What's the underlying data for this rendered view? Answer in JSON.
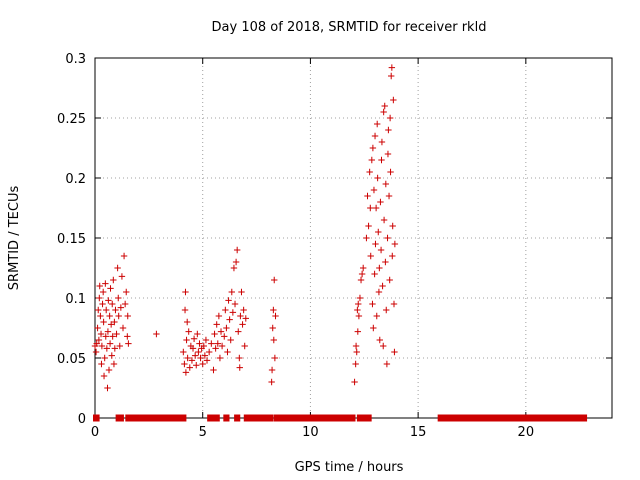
{
  "chart_data": {
    "type": "scatter",
    "title": "Day 108 of 2018, SRMTID for receiver rkld",
    "xlabel": "GPS time / hours",
    "ylabel": "SRMTID / TECUs",
    "xlim": [
      0,
      24
    ],
    "ylim": [
      0,
      0.3
    ],
    "xticks": [
      0,
      5,
      10,
      15,
      20
    ],
    "xtick_labels": [
      "0",
      "5",
      "10",
      "15",
      "20"
    ],
    "yticks": [
      0,
      0.05,
      0.1,
      0.15,
      0.2,
      0.25,
      0.3
    ],
    "ytick_labels": [
      "0",
      "0.05",
      "0.1",
      "0.15",
      "0.2",
      "0.25",
      "0.3"
    ],
    "grid": true,
    "marker": "+",
    "color": "#cc0000",
    "series": [
      {
        "points": [
          [
            0.0,
            0.06
          ],
          [
            0.05,
            0.055
          ],
          [
            0.08,
            0.062
          ],
          [
            0.12,
            0.075
          ],
          [
            0.15,
            0.09
          ],
          [
            0.18,
            0.065
          ],
          [
            0.2,
            0.1
          ],
          [
            0.22,
            0.11
          ],
          [
            0.25,
            0.085
          ],
          [
            0.28,
            0.07
          ],
          [
            0.3,
            0.045
          ],
          [
            0.32,
            0.06
          ],
          [
            0.35,
            0.095
          ],
          [
            0.38,
            0.105
          ],
          [
            0.4,
            0.08
          ],
          [
            0.42,
            0.035
          ],
          [
            0.45,
            0.05
          ],
          [
            0.48,
            0.112
          ],
          [
            0.5,
            0.068
          ],
          [
            0.52,
            0.09
          ],
          [
            0.55,
            0.058
          ],
          [
            0.58,
            0.025
          ],
          [
            0.6,
            0.072
          ],
          [
            0.62,
            0.098
          ],
          [
            0.65,
            0.04
          ],
          [
            0.68,
            0.085
          ],
          [
            0.7,
            0.062
          ],
          [
            0.72,
            0.108
          ],
          [
            0.75,
            0.078
          ],
          [
            0.78,
            0.052
          ],
          [
            0.8,
            0.095
          ],
          [
            0.82,
            0.068
          ],
          [
            0.85,
            0.115
          ],
          [
            0.88,
            0.045
          ],
          [
            0.9,
            0.08
          ],
          [
            0.92,
            0.058
          ],
          [
            0.95,
            0.09
          ],
          [
            1.0,
            0.07
          ],
          [
            1.05,
            0.125
          ],
          [
            1.08,
            0.1
          ],
          [
            1.1,
            0.085
          ],
          [
            1.15,
            0.06
          ],
          [
            1.2,
            0.092
          ],
          [
            1.25,
            0.118
          ],
          [
            1.3,
            0.075
          ],
          [
            1.35,
            0.135
          ],
          [
            1.4,
            0.095
          ],
          [
            1.45,
            0.105
          ],
          [
            1.5,
            0.068
          ],
          [
            1.52,
            0.085
          ],
          [
            1.55,
            0.062
          ],
          [
            2.85,
            0.07
          ],
          [
            4.1,
            0.055
          ],
          [
            4.15,
            0.045
          ],
          [
            4.18,
            0.09
          ],
          [
            4.2,
            0.105
          ],
          [
            4.22,
            0.038
          ],
          [
            4.25,
            0.065
          ],
          [
            4.28,
            0.08
          ],
          [
            4.3,
            0.05
          ],
          [
            4.35,
            0.072
          ],
          [
            4.4,
            0.042
          ],
          [
            4.45,
            0.06
          ],
          [
            4.5,
            0.048
          ],
          [
            4.55,
            0.058
          ],
          [
            4.6,
            0.066
          ],
          [
            4.65,
            0.052
          ],
          [
            4.7,
            0.044
          ],
          [
            4.75,
            0.07
          ],
          [
            4.8,
            0.055
          ],
          [
            4.85,
            0.062
          ],
          [
            4.9,
            0.05
          ],
          [
            4.95,
            0.058
          ],
          [
            5.0,
            0.045
          ],
          [
            5.05,
            0.06
          ],
          [
            5.1,
            0.052
          ],
          [
            5.15,
            0.065
          ],
          [
            5.2,
            0.048
          ],
          [
            5.3,
            0.055
          ],
          [
            5.4,
            0.062
          ],
          [
            5.5,
            0.04
          ],
          [
            5.55,
            0.07
          ],
          [
            5.6,
            0.058
          ],
          [
            5.65,
            0.078
          ],
          [
            5.7,
            0.062
          ],
          [
            5.75,
            0.085
          ],
          [
            5.8,
            0.05
          ],
          [
            5.85,
            0.072
          ],
          [
            5.9,
            0.06
          ],
          [
            6.0,
            0.068
          ],
          [
            6.05,
            0.09
          ],
          [
            6.1,
            0.075
          ],
          [
            6.15,
            0.055
          ],
          [
            6.2,
            0.098
          ],
          [
            6.25,
            0.082
          ],
          [
            6.3,
            0.065
          ],
          [
            6.35,
            0.105
          ],
          [
            6.4,
            0.088
          ],
          [
            6.45,
            0.125
          ],
          [
            6.5,
            0.095
          ],
          [
            6.55,
            0.13
          ],
          [
            6.6,
            0.14
          ],
          [
            6.65,
            0.072
          ],
          [
            6.7,
            0.05
          ],
          [
            6.72,
            0.042
          ],
          [
            6.75,
            0.085
          ],
          [
            6.8,
            0.105
          ],
          [
            6.85,
            0.078
          ],
          [
            6.9,
            0.09
          ],
          [
            6.95,
            0.06
          ],
          [
            7.0,
            0.083
          ],
          [
            8.2,
            0.03
          ],
          [
            8.22,
            0.04
          ],
          [
            8.25,
            0.075
          ],
          [
            8.28,
            0.09
          ],
          [
            8.3,
            0.065
          ],
          [
            8.32,
            0.115
          ],
          [
            8.35,
            0.05
          ],
          [
            8.38,
            0.085
          ],
          [
            12.05,
            0.03
          ],
          [
            12.1,
            0.045
          ],
          [
            12.12,
            0.06
          ],
          [
            12.15,
            0.055
          ],
          [
            12.18,
            0.09
          ],
          [
            12.2,
            0.072
          ],
          [
            12.22,
            0.095
          ],
          [
            12.25,
            0.085
          ],
          [
            12.3,
            0.1
          ],
          [
            12.35,
            0.115
          ],
          [
            12.4,
            0.12
          ],
          [
            12.45,
            0.125
          ],
          [
            12.6,
            0.15
          ],
          [
            12.65,
            0.185
          ],
          [
            12.7,
            0.16
          ],
          [
            12.75,
            0.205
          ],
          [
            12.78,
            0.175
          ],
          [
            12.8,
            0.135
          ],
          [
            12.85,
            0.215
          ],
          [
            12.88,
            0.095
          ],
          [
            12.9,
            0.225
          ],
          [
            12.92,
            0.075
          ],
          [
            12.95,
            0.19
          ],
          [
            12.98,
            0.12
          ],
          [
            13.0,
            0.235
          ],
          [
            13.02,
            0.145
          ],
          [
            13.05,
            0.175
          ],
          [
            13.08,
            0.085
          ],
          [
            13.1,
            0.245
          ],
          [
            13.12,
            0.2
          ],
          [
            13.15,
            0.155
          ],
          [
            13.18,
            0.105
          ],
          [
            13.2,
            0.125
          ],
          [
            13.22,
            0.065
          ],
          [
            13.25,
            0.18
          ],
          [
            13.28,
            0.14
          ],
          [
            13.3,
            0.215
          ],
          [
            13.32,
            0.23
          ],
          [
            13.35,
            0.11
          ],
          [
            13.38,
            0.06
          ],
          [
            13.4,
            0.255
          ],
          [
            13.42,
            0.165
          ],
          [
            13.45,
            0.26
          ],
          [
            13.48,
            0.13
          ],
          [
            13.5,
            0.195
          ],
          [
            13.52,
            0.09
          ],
          [
            13.55,
            0.045
          ],
          [
            13.58,
            0.15
          ],
          [
            13.6,
            0.22
          ],
          [
            13.62,
            0.24
          ],
          [
            13.65,
            0.185
          ],
          [
            13.68,
            0.115
          ],
          [
            13.7,
            0.25
          ],
          [
            13.72,
            0.205
          ],
          [
            13.75,
            0.285
          ],
          [
            13.78,
            0.292
          ],
          [
            13.8,
            0.135
          ],
          [
            13.82,
            0.16
          ],
          [
            13.85,
            0.265
          ],
          [
            13.88,
            0.095
          ],
          [
            13.9,
            0.055
          ],
          [
            13.92,
            0.145
          ]
        ]
      }
    ],
    "zero_intervals": [
      [
        0.0,
        0.12
      ],
      [
        1.05,
        1.25
      ],
      [
        1.5,
        4.15
      ],
      [
        5.3,
        5.45
      ],
      [
        5.6,
        5.7
      ],
      [
        6.05,
        6.15
      ],
      [
        6.55,
        6.65
      ],
      [
        7.0,
        8.2
      ],
      [
        8.4,
        12.0
      ],
      [
        12.25,
        12.75
      ],
      [
        16.0,
        22.75
      ]
    ]
  }
}
